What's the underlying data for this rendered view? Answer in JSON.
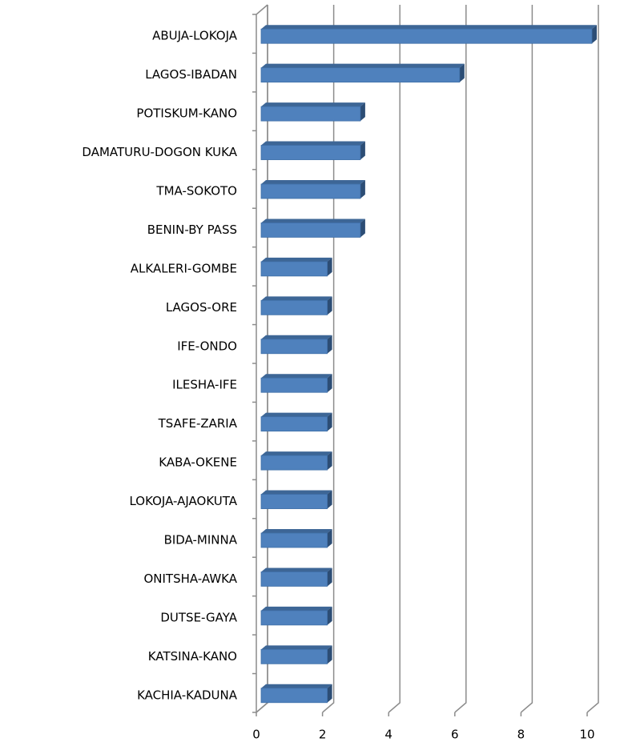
{
  "chart_data": {
    "type": "bar",
    "orientation": "horizontal",
    "categories": [
      "ABUJA-LOKOJA",
      "LAGOS-IBADAN",
      "POTISKUM-KANO",
      "DAMATURU-DOGON KUKA",
      "TMA-SOKOTO",
      "BENIN-BY PASS",
      "ALKALERI-GOMBE",
      "LAGOS-ORE",
      "IFE-ONDO",
      "ILESHA-IFE",
      "TSAFE-ZARIA",
      "KABA-OKENE",
      "LOKOJA-AJAOKUTA",
      "BIDA-MINNA",
      "ONITSHA-AWKA",
      "DUTSE-GAYA",
      "KATSINA-KANO",
      "KACHIA-KADUNA"
    ],
    "values": [
      10,
      6,
      3,
      3,
      3,
      3,
      2,
      2,
      2,
      2,
      2,
      2,
      2,
      2,
      2,
      2,
      2,
      2
    ],
    "color": "#4f81bd",
    "xlim": [
      0,
      10
    ],
    "xticks": [
      0,
      2,
      4,
      6,
      8,
      10
    ],
    "grid": true
  }
}
